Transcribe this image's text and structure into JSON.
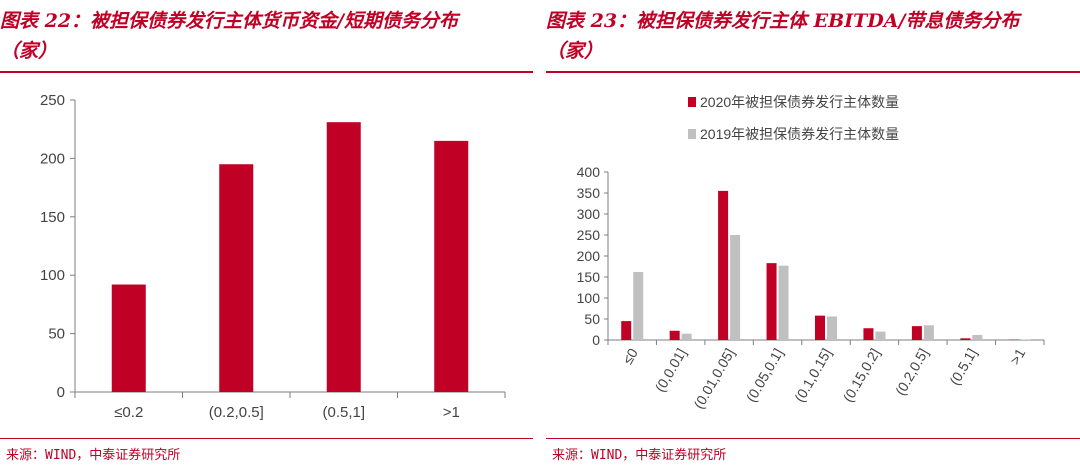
{
  "colors": {
    "accent": "#c00025",
    "bar_2020": "#c00025",
    "bar_2019": "#c0c0c0",
    "axis": "#7f7f7f"
  },
  "left": {
    "title_line1": "图表 22：被担保债券发行主体货币资金/短期债务分布",
    "title_line2": "（家）",
    "source": "来源：WIND，中泰证券研究所"
  },
  "right": {
    "title_line1": "图表 23：被担保债券发行主体 EBITDA/带息债务分布",
    "title_line2": "（家）",
    "source": "来源：WIND，中泰证券研究所"
  },
  "chart_data": [
    {
      "type": "bar",
      "categories": [
        "≤0.2",
        "(0.2,0.5]",
        "(0.5,1]",
        ">1"
      ],
      "values": [
        92,
        195,
        231,
        215
      ],
      "ylim": [
        0,
        250
      ],
      "yticks": [
        0,
        50,
        100,
        150,
        200,
        250
      ],
      "grid": false,
      "legend": "none"
    },
    {
      "type": "bar",
      "categories": [
        "≤0",
        "(0,0.01]",
        "(0.01,0.05]",
        "(0.05,0.1]",
        "(0.1,0.15]",
        "(0.15,0.2]",
        "(0.2,0.5]",
        "(0.5,1]",
        ">1"
      ],
      "series": [
        {
          "name": "2020年被担保债券发行主体数量",
          "values": [
            45,
            22,
            355,
            183,
            58,
            28,
            33,
            4,
            1
          ]
        },
        {
          "name": "2019年被担保债券发行主体数量",
          "values": [
            162,
            15,
            250,
            177,
            56,
            20,
            35,
            12,
            1
          ]
        }
      ],
      "ylim": [
        0,
        400
      ],
      "yticks": [
        0,
        50,
        100,
        150,
        200,
        250,
        300,
        350,
        400
      ],
      "grid": false,
      "legend": "top"
    }
  ]
}
